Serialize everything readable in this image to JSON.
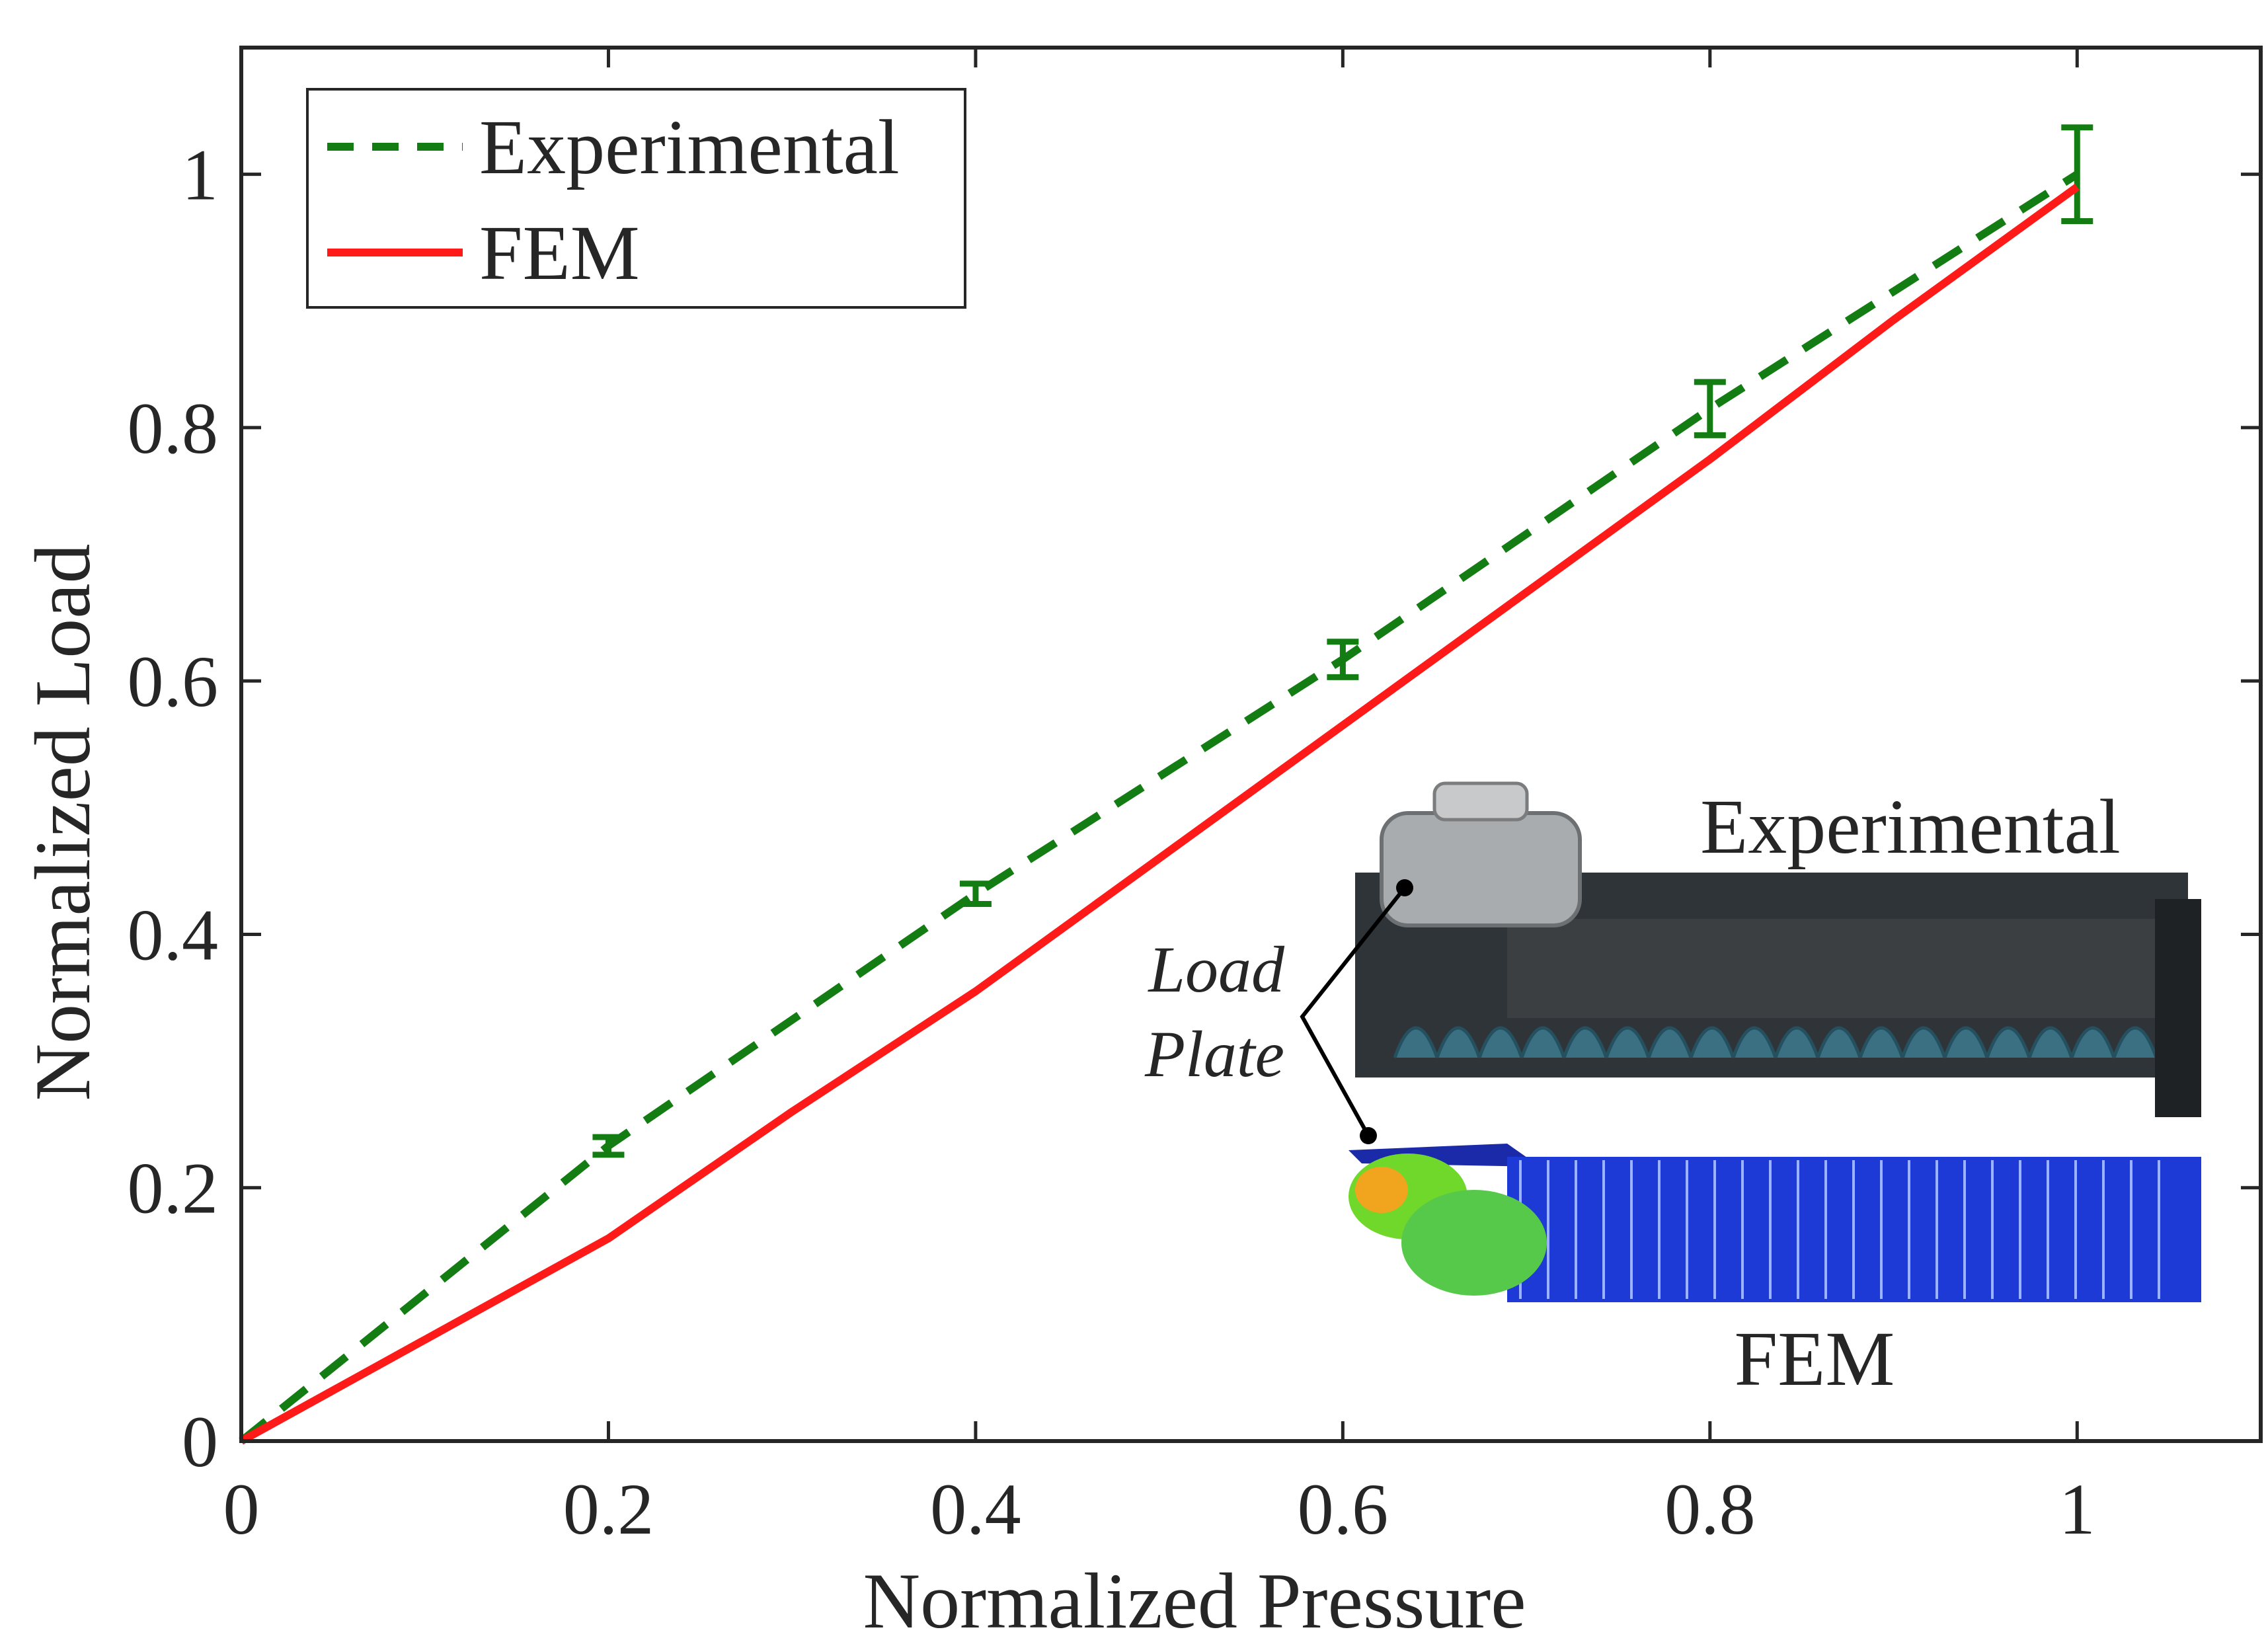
{
  "chart_data": {
    "type": "line",
    "xlabel": "Normalized Pressure",
    "ylabel": "Normalized Load",
    "xlim": [
      0,
      1.1
    ],
    "ylim": [
      0,
      1.1
    ],
    "xticks": [
      0,
      0.2,
      0.4,
      0.6,
      0.8,
      1
    ],
    "xtick_labels": [
      "0",
      "0.2",
      "0.4",
      "0.6",
      "0.8",
      "1"
    ],
    "yticks": [
      0,
      0.2,
      0.4,
      0.6,
      0.8,
      1
    ],
    "ytick_labels": [
      "0",
      "0.2",
      "0.4",
      "0.6",
      "0.8",
      "1"
    ],
    "grid": false,
    "legend_position": "top-left",
    "series": [
      {
        "name": "Experimental",
        "style": "dashed",
        "color": "#137d13",
        "x": [
          0,
          0.2,
          0.4,
          0.6,
          0.8,
          1.0
        ],
        "y": [
          0,
          0.233,
          0.432,
          0.617,
          0.815,
          1.0
        ],
        "error": [
          0,
          0.007,
          0.008,
          0.014,
          0.021,
          0.037
        ]
      },
      {
        "name": "FEM",
        "style": "solid",
        "color": "#ff1a1a",
        "x": [
          0,
          0.1,
          0.2,
          0.3,
          0.4,
          0.5,
          0.6,
          0.7,
          0.8,
          0.9,
          1.0
        ],
        "y": [
          0,
          0.08,
          0.16,
          0.26,
          0.355,
          0.46,
          0.565,
          0.67,
          0.775,
          0.885,
          0.99
        ]
      }
    ],
    "inset": {
      "label_top": "Experimental",
      "label_bottom": "FEM",
      "callout": [
        "Load",
        "Plate"
      ]
    }
  }
}
